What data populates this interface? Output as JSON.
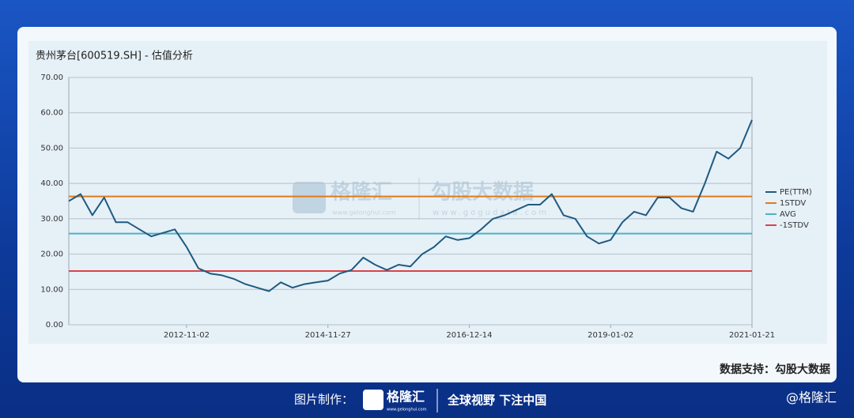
{
  "chart_data": {
    "type": "line",
    "title": "贵州茅台[600519.SH] - 估值分析",
    "categories": [
      null,
      null,
      null,
      null,
      null,
      null,
      null,
      null,
      null,
      null,
      "2012-11-02",
      null,
      null,
      null,
      null,
      null,
      null,
      null,
      null,
      null,
      null,
      null,
      "2014-11-27",
      null,
      null,
      null,
      null,
      null,
      null,
      null,
      null,
      null,
      null,
      null,
      "2016-12-14",
      null,
      null,
      null,
      null,
      null,
      null,
      null,
      null,
      null,
      null,
      null,
      "2019-01-02",
      null,
      null,
      null,
      null,
      null,
      null,
      null,
      null,
      null,
      null,
      null,
      "2021-01-21"
    ],
    "series": [
      {
        "name": "PE(TTM)",
        "color": "#1f5a80",
        "values": [
          35,
          37,
          31,
          36,
          29,
          29,
          27,
          25,
          26,
          27,
          22,
          16,
          14.5,
          14,
          13,
          11.5,
          10.5,
          9.5,
          12,
          10.5,
          11.5,
          12,
          12.5,
          14.5,
          15.5,
          19,
          17,
          15.5,
          17,
          16.5,
          20,
          22,
          25,
          24,
          24.5,
          27,
          30,
          31,
          32.5,
          34,
          34,
          37,
          31,
          30,
          25,
          23,
          24,
          29,
          32,
          31,
          36,
          36,
          33,
          32,
          40,
          49,
          47,
          50,
          58
        ]
      }
    ],
    "hlines": [
      {
        "name": "1STDV",
        "color": "#e07b1a",
        "value": 36.3
      },
      {
        "name": "AVG",
        "color": "#4bb3c4",
        "value": 25.8
      },
      {
        "name": "-1STDV",
        "color": "#d9434a",
        "value": 15.2
      }
    ],
    "ylim": [
      0,
      70
    ],
    "yticks": [
      {
        "value": 0,
        "label": "0.00"
      },
      {
        "value": 10,
        "label": "10.00"
      },
      {
        "value": 20,
        "label": "20.00"
      },
      {
        "value": 30,
        "label": "30.00"
      },
      {
        "value": 40,
        "label": "40.00"
      },
      {
        "value": 50,
        "label": "50.00"
      },
      {
        "value": 60,
        "label": "60.00"
      },
      {
        "value": 70,
        "label": "70.00"
      }
    ],
    "grid": true,
    "legend": "right"
  },
  "watermark": {
    "brand": "格隆汇",
    "brand_url": "www.gelonghui.com",
    "partner": "勾股大数据",
    "partner_url": "www.gogudata.com"
  },
  "source": "数据支持：勾股大数据",
  "footer": {
    "made_by": "图片制作：",
    "logo": "格隆汇",
    "logo_url": "www.gelonghui.com",
    "slogan": "全球视野 下注中国",
    "handle": "@格隆汇"
  }
}
